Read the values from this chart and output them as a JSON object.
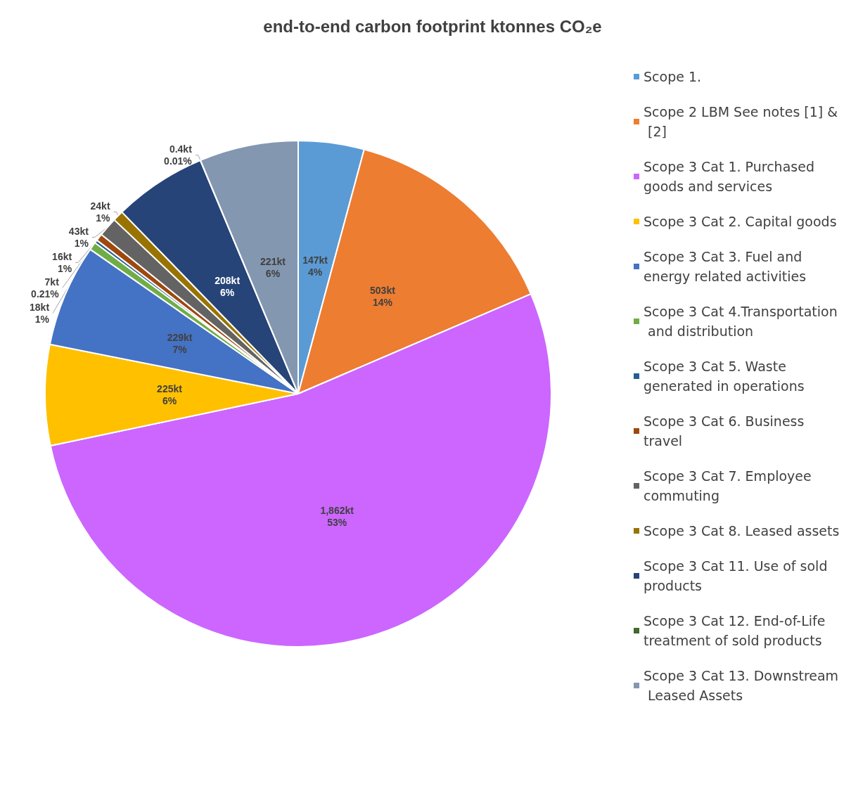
{
  "chart_data": {
    "type": "pie",
    "title": "end-to-end carbon footprint ktonnes CO₂e",
    "categories": [
      "Scope 1.",
      "Scope 2 LBM See notes [1] & [2]",
      "Scope 3 Cat 1. Purchased goods and services",
      "Scope 3 Cat 2. Capital goods",
      "Scope 3 Cat 3. Fuel and energy related activities",
      "Scope 3 Cat 4.Transportation and distribution",
      "Scope 3 Cat 5. Waste generated in operations",
      "Scope 3 Cat 6. Business travel",
      "Scope 3 Cat 7. Employee commuting",
      "Scope 3 Cat 8. Leased assets",
      "Scope 3 Cat 11. Use of sold products",
      "Scope 3 Cat 12. End-of-Life treatment of sold products",
      "Scope 3 Cat 13. Downstream Leased Assets"
    ],
    "values": [
      147,
      503,
      1862,
      225,
      229,
      18,
      7,
      16,
      43,
      24,
      208,
      0.4,
      221
    ],
    "value_labels": [
      "147kt\n4%",
      "503kt\n14%",
      "1,862kt\n53%",
      "225kt\n6%",
      "229kt\n7%",
      "18kt\n1%",
      "7kt\n0.21%",
      "16kt\n1%",
      "43kt\n1%",
      "24kt\n1%",
      "208kt\n6%",
      "0.4kt\n0.01%",
      "221kt\n6%"
    ],
    "colors": [
      "#5b9bd5",
      "#ed7d31",
      "#cc66ff",
      "#ffc000",
      "#4472c4",
      "#70ad47",
      "#255e91",
      "#9e480e",
      "#636363",
      "#997300",
      "#264478",
      "#43682b",
      "#8497b0"
    ],
    "legend": "right"
  }
}
